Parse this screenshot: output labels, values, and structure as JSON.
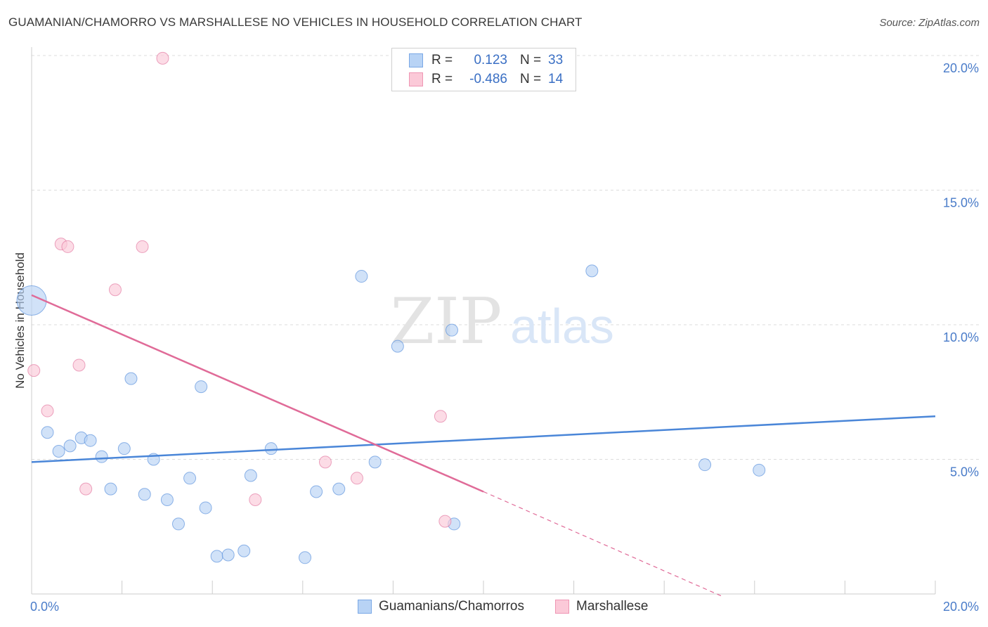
{
  "header": {
    "title": "GUAMANIAN/CHAMORRO VS MARSHALLESE NO VEHICLES IN HOUSEHOLD CORRELATION CHART",
    "source": "Source: ZipAtlas.com"
  },
  "watermark": {
    "zip": "ZIP",
    "atlas": "atlas"
  },
  "legend": {
    "rows": [
      {
        "r_label": "R =",
        "r_value": "0.123",
        "n_label": "N =",
        "n_value": "33",
        "color": "#b8d3f5",
        "border": "#7aa8e6"
      },
      {
        "r_label": "R =",
        "r_value": "-0.486",
        "n_label": "N =",
        "n_value": "14",
        "color": "#fbc9d8",
        "border": "#ef96b4"
      }
    ]
  },
  "bottom_legend": {
    "items": [
      {
        "label": "Guamanians/Chamorros",
        "color": "#b8d3f5",
        "border": "#7aa8e6"
      },
      {
        "label": "Marshallese",
        "color": "#fbc9d8",
        "border": "#ef96b4"
      }
    ]
  },
  "chart_data": {
    "type": "scatter",
    "title": "GUAMANIAN/CHAMORRO VS MARSHALLESE NO VEHICLES IN HOUSEHOLD CORRELATION CHART",
    "xlabel": "",
    "ylabel": "No Vehicles in Household",
    "xlim": [
      0,
      20
    ],
    "ylim": [
      0,
      20
    ],
    "x_tick_labels": [
      "0.0%",
      "20.0%"
    ],
    "y_ticks": [
      5,
      10,
      15,
      20
    ],
    "y_tick_labels": [
      "5.0%",
      "10.0%",
      "15.0%",
      "20.0%"
    ],
    "grid": true,
    "legend_position": "top-center",
    "series": [
      {
        "name": "Guamanians/Chamorros",
        "color": "#4a86d8",
        "fill": "#b8d3f5",
        "r": 0.123,
        "n": 33,
        "trend": {
          "x": [
            0,
            20
          ],
          "y": [
            4.9,
            6.6
          ],
          "dashed_from": null
        },
        "points": [
          {
            "x": 0.0,
            "y": 10.9,
            "size": "large"
          },
          {
            "x": 0.35,
            "y": 6.0
          },
          {
            "x": 0.6,
            "y": 5.3
          },
          {
            "x": 0.85,
            "y": 5.5
          },
          {
            "x": 1.1,
            "y": 5.8
          },
          {
            "x": 1.3,
            "y": 5.7
          },
          {
            "x": 1.55,
            "y": 5.1
          },
          {
            "x": 1.75,
            "y": 3.9
          },
          {
            "x": 2.05,
            "y": 5.4
          },
          {
            "x": 2.2,
            "y": 8.0
          },
          {
            "x": 2.5,
            "y": 3.7
          },
          {
            "x": 2.7,
            "y": 5.0
          },
          {
            "x": 3.0,
            "y": 3.5
          },
          {
            "x": 3.25,
            "y": 2.6
          },
          {
            "x": 3.5,
            "y": 4.3
          },
          {
            "x": 3.75,
            "y": 7.7
          },
          {
            "x": 3.85,
            "y": 3.2
          },
          {
            "x": 4.1,
            "y": 1.4
          },
          {
            "x": 4.35,
            "y": 1.45
          },
          {
            "x": 4.7,
            "y": 1.6
          },
          {
            "x": 4.85,
            "y": 4.4
          },
          {
            "x": 5.3,
            "y": 5.4
          },
          {
            "x": 6.05,
            "y": 1.35
          },
          {
            "x": 6.3,
            "y": 3.8
          },
          {
            "x": 6.8,
            "y": 3.9
          },
          {
            "x": 7.3,
            "y": 11.8
          },
          {
            "x": 7.6,
            "y": 4.9
          },
          {
            "x": 8.1,
            "y": 9.2
          },
          {
            "x": 9.3,
            "y": 9.8
          },
          {
            "x": 9.35,
            "y": 2.6
          },
          {
            "x": 12.4,
            "y": 12.0
          },
          {
            "x": 14.9,
            "y": 4.8
          },
          {
            "x": 16.1,
            "y": 4.6
          }
        ]
      },
      {
        "name": "Marshallese",
        "color": "#e06b98",
        "fill": "#fbc9d8",
        "r": -0.486,
        "n": 14,
        "trend": {
          "x": [
            0,
            10
          ],
          "y": [
            11.1,
            3.8
          ],
          "dashed_to": [
            15.3,
            -0.1
          ]
        },
        "points": [
          {
            "x": 0.05,
            "y": 8.3
          },
          {
            "x": 0.35,
            "y": 6.8
          },
          {
            "x": 0.65,
            "y": 13.0
          },
          {
            "x": 0.8,
            "y": 12.9
          },
          {
            "x": 1.05,
            "y": 8.5
          },
          {
            "x": 1.2,
            "y": 3.9
          },
          {
            "x": 1.85,
            "y": 11.3
          },
          {
            "x": 2.45,
            "y": 12.9
          },
          {
            "x": 2.9,
            "y": 19.9
          },
          {
            "x": 4.95,
            "y": 3.5
          },
          {
            "x": 6.5,
            "y": 4.9
          },
          {
            "x": 7.2,
            "y": 4.3
          },
          {
            "x": 9.05,
            "y": 6.6
          },
          {
            "x": 9.15,
            "y": 2.7
          }
        ]
      }
    ]
  }
}
